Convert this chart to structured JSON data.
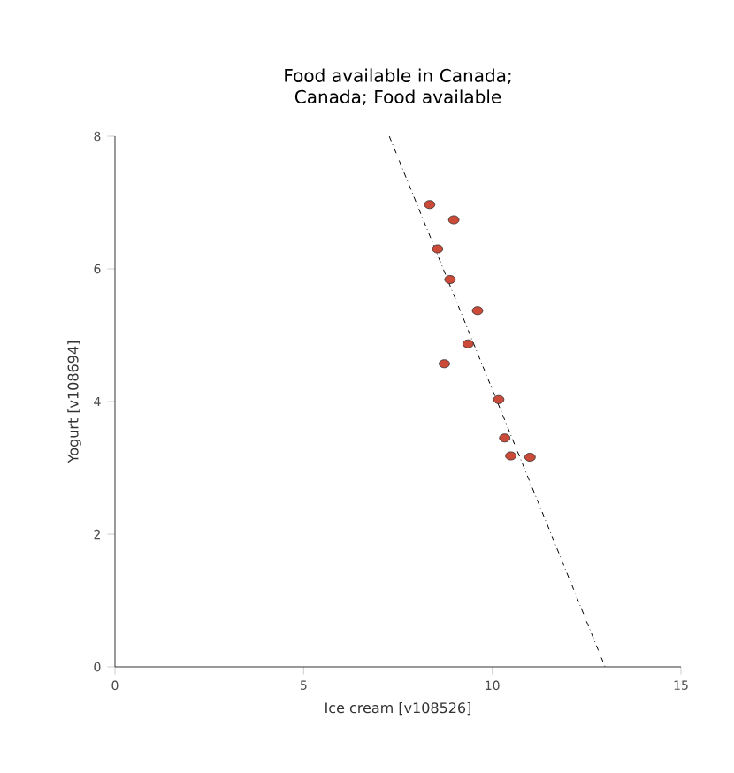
{
  "chart_data": {
    "type": "scatter",
    "title": "Food available in Canada; Canada; Food available",
    "xlabel": "Ice cream [v108526]",
    "ylabel": "Yogurt [v108694]",
    "xlim": [
      0,
      15
    ],
    "ylim": [
      0,
      8
    ],
    "xticks": [
      0,
      5,
      10,
      15
    ],
    "yticks": [
      0,
      2,
      4,
      6,
      8
    ],
    "series": [
      {
        "marker": "circle",
        "color": "#cc4a38",
        "x": [
          8.34,
          8.98,
          8.55,
          8.88,
          9.61,
          9.36,
          8.73,
          10.17,
          10.33,
          10.49,
          11.0
        ],
        "values": [
          6.97,
          6.74,
          6.3,
          5.84,
          5.37,
          4.87,
          4.57,
          4.03,
          3.45,
          3.18,
          3.16
        ]
      },
      {
        "type": "line",
        "marker": "none",
        "color": "#000000",
        "line_style": "dashdot",
        "x": [
          7.27,
          12.99
        ],
        "values": [
          8,
          0
        ]
      }
    ]
  }
}
